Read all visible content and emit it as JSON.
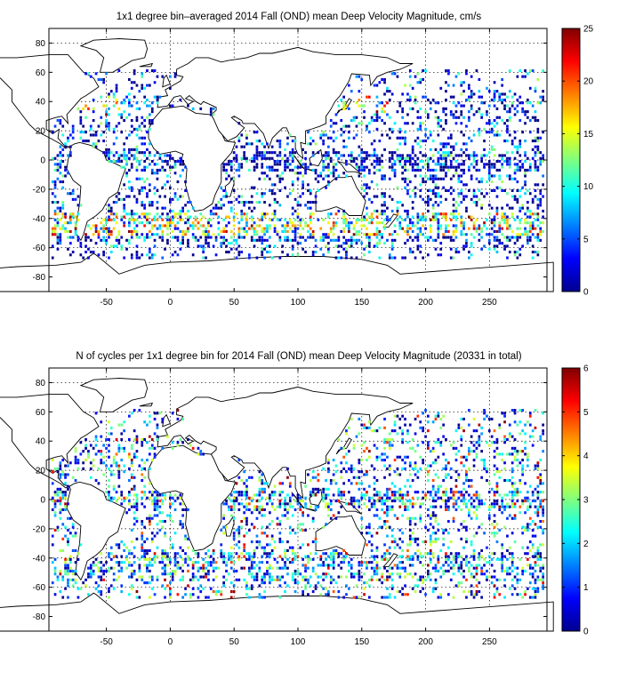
{
  "chart_data": [
    {
      "type": "heatmap",
      "title": "1x1 degree bin–averaged 2014 Fall (OND) mean Deep Velocity Magnitude, cm/s",
      "xlabel": "",
      "ylabel": "",
      "xlim": [
        -95,
        295
      ],
      "ylim": [
        -90,
        90
      ],
      "x_ticks": [
        -50,
        0,
        50,
        100,
        150,
        200,
        250
      ],
      "y_ticks": [
        80,
        60,
        40,
        20,
        0,
        -20,
        -40,
        -60,
        -80
      ],
      "grid": true,
      "colormap": "jet",
      "colorbar": {
        "min": 0,
        "max": 25,
        "ticks": [
          0,
          5,
          10,
          15,
          20,
          25
        ]
      },
      "note_values": "values approximate; dense sparse 1x1 degree bins mostly 0-5 cm/s with higher values (10-25) in western boundary currents and Antarctic Circumpolar Current"
    },
    {
      "type": "heatmap",
      "title": "N of cycles per 1x1 degree bin for 2014 Fall (OND) mean Deep Velocity Magnitude (20331 in total)",
      "xlabel": "",
      "ylabel": "",
      "xlim": [
        -95,
        295
      ],
      "ylim": [
        -90,
        90
      ],
      "x_ticks": [
        -50,
        0,
        50,
        100,
        150,
        200,
        250
      ],
      "y_ticks": [
        80,
        60,
        40,
        20,
        0,
        -20,
        -40,
        -60,
        -80
      ],
      "grid": true,
      "colormap": "jet",
      "colorbar": {
        "min": 0,
        "max": 6,
        "ticks": [
          0,
          1,
          2,
          3,
          4,
          5,
          6
        ]
      },
      "total_cycles": 20331
    }
  ]
}
